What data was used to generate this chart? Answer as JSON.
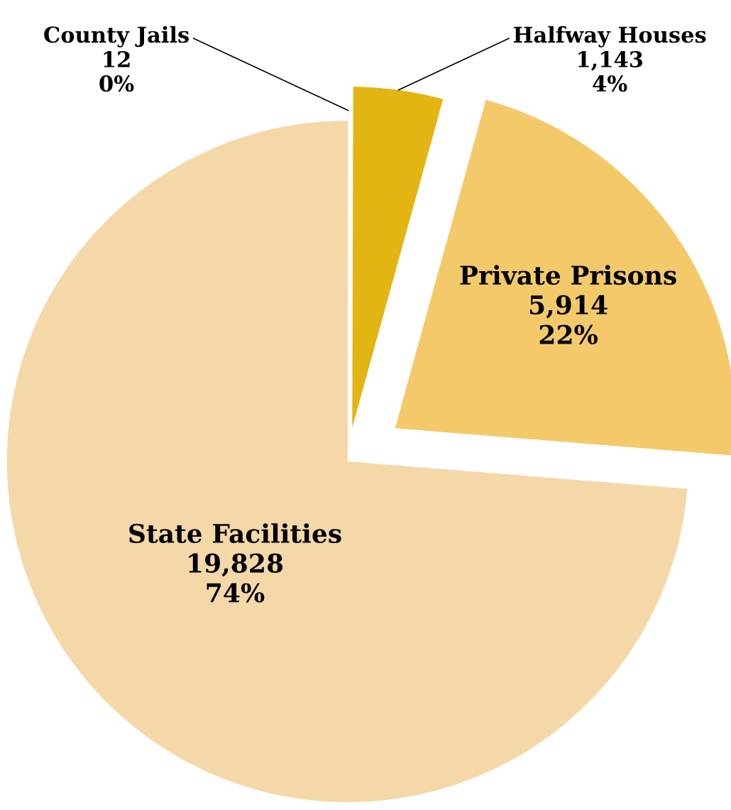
{
  "chart_data": {
    "type": "pie",
    "categories": [
      "County Jails",
      "Halfway Houses",
      "Private Prisons",
      "State Facilities"
    ],
    "values": [
      12,
      1143,
      5914,
      19828
    ],
    "value_labels": [
      "12\n0%",
      "1,143\n4%",
      "5,914\n22%",
      "19,828\n74%"
    ],
    "colors": [
      "#f7ecd6",
      "#e3b512",
      "#f3c96a",
      "#f4d8a8"
    ],
    "legend": false
  }
}
